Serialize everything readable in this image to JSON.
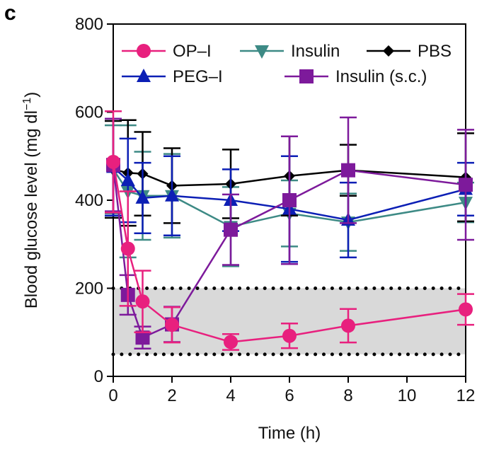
{
  "chart_data": {
    "type": "line",
    "panel_label": "c",
    "title": "",
    "xlabel": "Time (h)",
    "ylabel_main": "Blood glucose level (mg dl",
    "ylabel_sup": "−1",
    "ylabel_close": ")",
    "xlim": [
      0,
      12
    ],
    "ylim": [
      0,
      800
    ],
    "xticks": [
      0,
      2,
      4,
      6,
      8,
      10,
      12
    ],
    "yticks": [
      0,
      200,
      400,
      600,
      800
    ],
    "normoglycemic_band": {
      "lower": 50,
      "upper": 200
    },
    "band_color": "#d9d9d9",
    "series": [
      {
        "name": "OP–I",
        "color": "#e8207e",
        "marker": "circle",
        "x": [
          0,
          0.5,
          1,
          2,
          4,
          6,
          8,
          12
        ],
        "y": [
          487,
          290,
          170,
          117,
          78,
          92,
          115,
          152
        ],
        "err": [
          115,
          130,
          70,
          40,
          18,
          28,
          38,
          35
        ]
      },
      {
        "name": "Insulin",
        "color": "#3d8a85",
        "marker": "triangle-down",
        "x": [
          0,
          0.5,
          1,
          2,
          4,
          6,
          8,
          12
        ],
        "y": [
          470,
          420,
          410,
          410,
          340,
          370,
          350,
          395
        ],
        "err": [
          100,
          150,
          100,
          95,
          90,
          75,
          65,
          45
        ]
      },
      {
        "name": "PBS",
        "color": "#000000",
        "marker": "diamond",
        "x": [
          0,
          0.5,
          1,
          2,
          4,
          6,
          8,
          12
        ],
        "y": [
          470,
          462,
          460,
          433,
          437,
          455,
          468,
          452
        ],
        "err": [
          110,
          120,
          95,
          85,
          78,
          90,
          58,
          100
        ]
      },
      {
        "name": "PEG–I",
        "color": "#0c1fb5",
        "marker": "triangle-up",
        "x": [
          0,
          0.5,
          1,
          2,
          4,
          6,
          8,
          12
        ],
        "y": [
          475,
          445,
          405,
          410,
          400,
          380,
          355,
          425
        ],
        "err": [
          110,
          95,
          80,
          90,
          70,
          120,
          85,
          60
        ]
      },
      {
        "name": "Insulin (s.c.)",
        "color": "#7d1a9b",
        "marker": "square",
        "x": [
          0,
          0.5,
          1,
          2,
          4,
          6,
          8,
          12
        ],
        "y": [
          480,
          185,
          88,
          118,
          333,
          400,
          468,
          435
        ],
        "err": [
          105,
          45,
          25,
          40,
          80,
          145,
          120,
          125
        ]
      }
    ],
    "legend": {
      "placement": "top",
      "rows": [
        [
          "OP–I",
          "Insulin",
          "PBS"
        ],
        [
          "PEG–I",
          "Insulin (s.c.)"
        ]
      ]
    }
  }
}
